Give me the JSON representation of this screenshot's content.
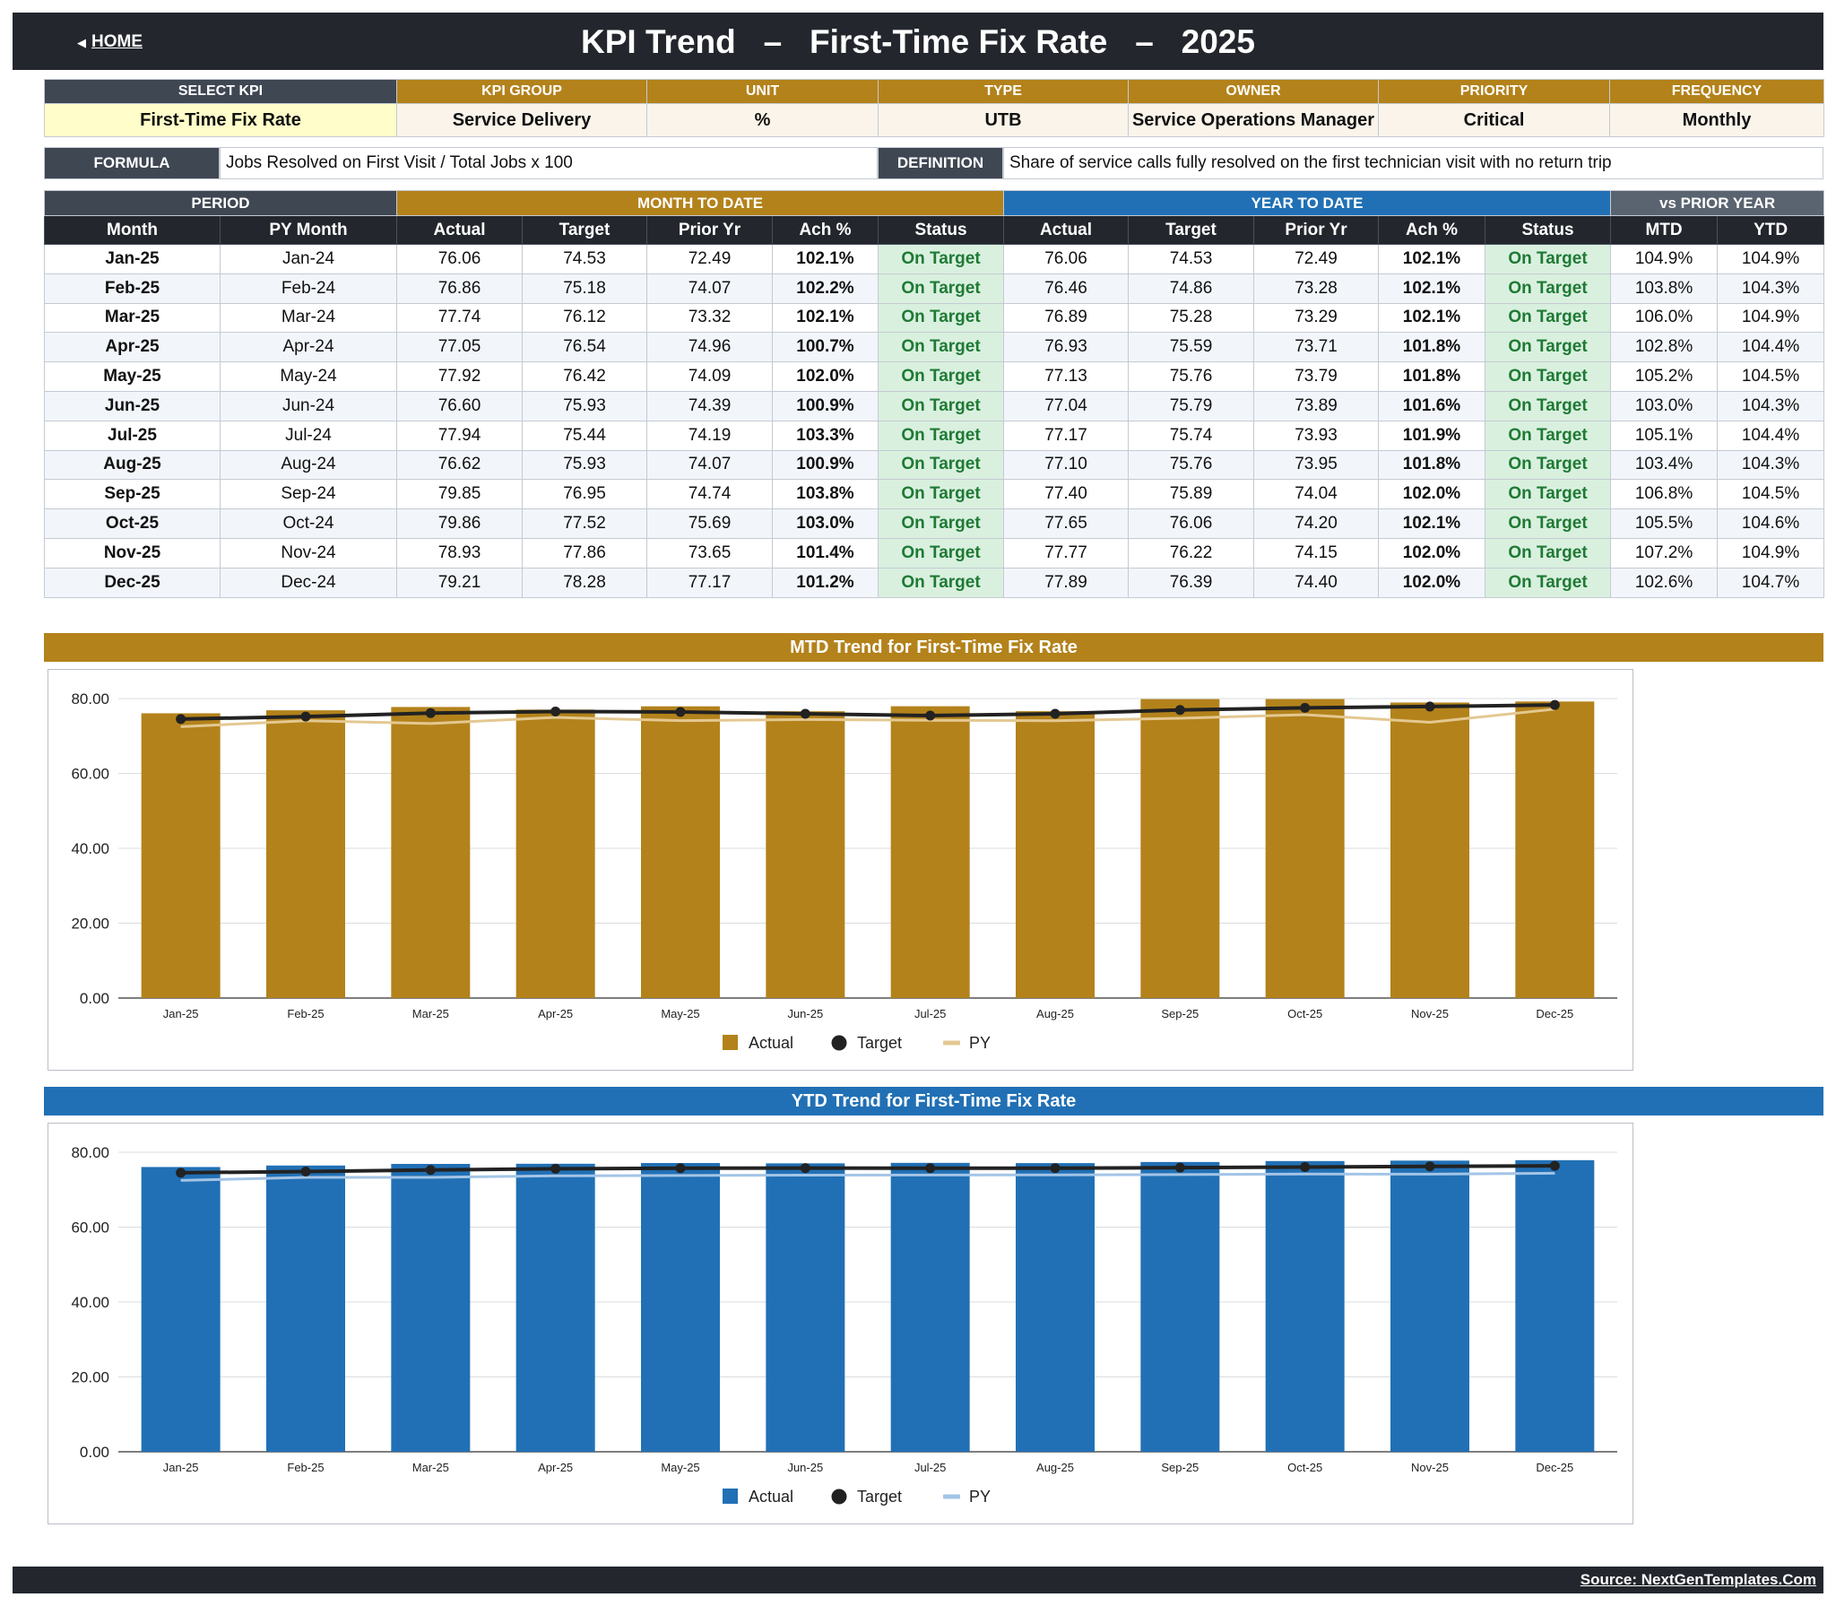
{
  "header": {
    "home_label": "HOME",
    "home_icon": "triangle-left-icon",
    "title": "KPI Trend   –   First-Time Fix Rate   –   2025"
  },
  "kpi_meta": {
    "headers": [
      "SELECT KPI",
      "KPI GROUP",
      "UNIT",
      "TYPE",
      "OWNER",
      "PRIORITY",
      "FREQUENCY"
    ],
    "values": [
      "First-Time Fix Rate",
      "Service Delivery",
      "%",
      "UTB",
      "Service Operations Manager",
      "Critical",
      "Monthly"
    ]
  },
  "formula": {
    "label": "FORMULA",
    "text": "Jobs Resolved on First Visit / Total Jobs x 100"
  },
  "definition": {
    "label": "DEFINITION",
    "text": "Share of service calls fully resolved on the first technician visit with no return trip"
  },
  "table": {
    "groups": [
      "PERIOD",
      "MONTH TO DATE",
      "YEAR TO DATE",
      "vs PRIOR YEAR"
    ],
    "columns": [
      "Month",
      "PY Month",
      "Actual",
      "Target",
      "Prior Yr",
      "Ach %",
      "Status",
      "Actual",
      "Target",
      "Prior Yr",
      "Ach %",
      "Status",
      "MTD",
      "YTD"
    ],
    "rows": [
      [
        "Jan-25",
        "Jan-24",
        "76.06",
        "74.53",
        "72.49",
        "102.1%",
        "On Target",
        "76.06",
        "74.53",
        "72.49",
        "102.1%",
        "On Target",
        "104.9%",
        "104.9%"
      ],
      [
        "Feb-25",
        "Feb-24",
        "76.86",
        "75.18",
        "74.07",
        "102.2%",
        "On Target",
        "76.46",
        "74.86",
        "73.28",
        "102.1%",
        "On Target",
        "103.8%",
        "104.3%"
      ],
      [
        "Mar-25",
        "Mar-24",
        "77.74",
        "76.12",
        "73.32",
        "102.1%",
        "On Target",
        "76.89",
        "75.28",
        "73.29",
        "102.1%",
        "On Target",
        "106.0%",
        "104.9%"
      ],
      [
        "Apr-25",
        "Apr-24",
        "77.05",
        "76.54",
        "74.96",
        "100.7%",
        "On Target",
        "76.93",
        "75.59",
        "73.71",
        "101.8%",
        "On Target",
        "102.8%",
        "104.4%"
      ],
      [
        "May-25",
        "May-24",
        "77.92",
        "76.42",
        "74.09",
        "102.0%",
        "On Target",
        "77.13",
        "75.76",
        "73.79",
        "101.8%",
        "On Target",
        "105.2%",
        "104.5%"
      ],
      [
        "Jun-25",
        "Jun-24",
        "76.60",
        "75.93",
        "74.39",
        "100.9%",
        "On Target",
        "77.04",
        "75.79",
        "73.89",
        "101.6%",
        "On Target",
        "103.0%",
        "104.3%"
      ],
      [
        "Jul-25",
        "Jul-24",
        "77.94",
        "75.44",
        "74.19",
        "103.3%",
        "On Target",
        "77.17",
        "75.74",
        "73.93",
        "101.9%",
        "On Target",
        "105.1%",
        "104.4%"
      ],
      [
        "Aug-25",
        "Aug-24",
        "76.62",
        "75.93",
        "74.07",
        "100.9%",
        "On Target",
        "77.10",
        "75.76",
        "73.95",
        "101.8%",
        "On Target",
        "103.4%",
        "104.3%"
      ],
      [
        "Sep-25",
        "Sep-24",
        "79.85",
        "76.95",
        "74.74",
        "103.8%",
        "On Target",
        "77.40",
        "75.89",
        "74.04",
        "102.0%",
        "On Target",
        "106.8%",
        "104.5%"
      ],
      [
        "Oct-25",
        "Oct-24",
        "79.86",
        "77.52",
        "75.69",
        "103.0%",
        "On Target",
        "77.65",
        "76.06",
        "74.20",
        "102.1%",
        "On Target",
        "105.5%",
        "104.6%"
      ],
      [
        "Nov-25",
        "Nov-24",
        "78.93",
        "77.86",
        "73.65",
        "101.4%",
        "On Target",
        "77.77",
        "76.22",
        "74.15",
        "102.0%",
        "On Target",
        "107.2%",
        "104.9%"
      ],
      [
        "Dec-25",
        "Dec-24",
        "79.21",
        "78.28",
        "77.17",
        "101.2%",
        "On Target",
        "77.89",
        "76.39",
        "74.40",
        "102.0%",
        "On Target",
        "102.6%",
        "104.7%"
      ]
    ]
  },
  "chart_data": [
    {
      "type": "bar",
      "title": "MTD Trend for First-Time Fix Rate",
      "categories": [
        "Jan-25",
        "Feb-25",
        "Mar-25",
        "Apr-25",
        "May-25",
        "Jun-25",
        "Jul-25",
        "Aug-25",
        "Sep-25",
        "Oct-25",
        "Nov-25",
        "Dec-25"
      ],
      "series": [
        {
          "name": "Actual",
          "kind": "bar",
          "color": "#b3821b",
          "values": [
            76.06,
            76.86,
            77.74,
            77.05,
            77.92,
            76.6,
            77.94,
            76.62,
            79.85,
            79.86,
            78.93,
            79.21
          ]
        },
        {
          "name": "Target",
          "kind": "line-markers",
          "color": "#222222",
          "values": [
            74.53,
            75.18,
            76.12,
            76.54,
            76.42,
            75.93,
            75.44,
            75.93,
            76.95,
            77.52,
            77.86,
            78.28
          ]
        },
        {
          "name": "PY",
          "kind": "line",
          "color": "#e4c891",
          "values": [
            72.49,
            74.07,
            73.32,
            74.96,
            74.09,
            74.39,
            74.19,
            74.07,
            74.74,
            75.69,
            73.65,
            77.17
          ]
        }
      ],
      "ylim": [
        0,
        80
      ],
      "yticks": [
        "0.00",
        "20.00",
        "40.00",
        "60.00",
        "80.00"
      ],
      "grid": true,
      "legend": "bottom-center"
    },
    {
      "type": "bar",
      "title": "YTD Trend for First-Time Fix Rate",
      "categories": [
        "Jan-25",
        "Feb-25",
        "Mar-25",
        "Apr-25",
        "May-25",
        "Jun-25",
        "Jul-25",
        "Aug-25",
        "Sep-25",
        "Oct-25",
        "Nov-25",
        "Dec-25"
      ],
      "series": [
        {
          "name": "Actual",
          "kind": "bar",
          "color": "#2170b5",
          "values": [
            76.06,
            76.46,
            76.89,
            76.93,
            77.13,
            77.04,
            77.17,
            77.1,
            77.4,
            77.65,
            77.77,
            77.89
          ]
        },
        {
          "name": "Target",
          "kind": "line-markers",
          "color": "#222222",
          "values": [
            74.53,
            74.86,
            75.28,
            75.59,
            75.76,
            75.79,
            75.74,
            75.76,
            75.89,
            76.06,
            76.22,
            76.39
          ]
        },
        {
          "name": "PY",
          "kind": "line",
          "color": "#a3c4e6",
          "values": [
            72.49,
            73.28,
            73.29,
            73.71,
            73.79,
            73.89,
            73.93,
            73.95,
            74.04,
            74.2,
            74.15,
            74.4
          ]
        }
      ],
      "ylim": [
        0,
        80
      ],
      "yticks": [
        "0.00",
        "20.00",
        "40.00",
        "60.00",
        "80.00"
      ],
      "grid": true,
      "legend": "bottom-center"
    }
  ],
  "footer": {
    "source": "Source: NextGenTemplates.Com"
  }
}
